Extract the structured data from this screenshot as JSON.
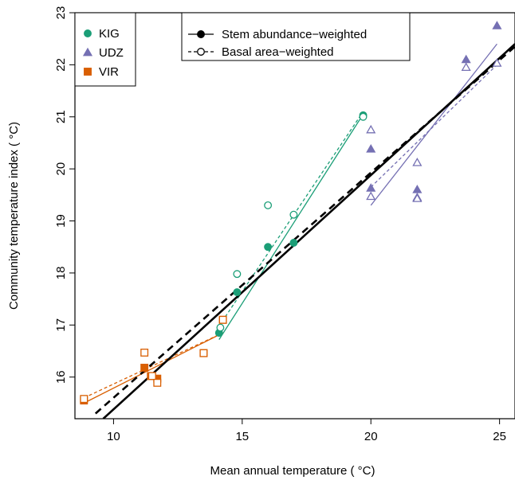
{
  "chart_data": {
    "type": "scatter",
    "xlabel": "Mean annual temperature ( °C)",
    "ylabel": "Community temperature index ( °C)",
    "xlim": [
      8.5,
      25.6
    ],
    "ylim": [
      15.2,
      23.0
    ],
    "xticks": [
      10,
      15,
      20,
      25
    ],
    "yticks": [
      16,
      17,
      18,
      19,
      20,
      21,
      22,
      23
    ],
    "xtick_labels": [
      "10",
      "15",
      "20",
      "25"
    ],
    "ytick_labels": [
      "16",
      "17",
      "18",
      "19",
      "20",
      "21",
      "22",
      "23"
    ],
    "colors": {
      "KIG": "#1b9e77",
      "UDZ": "#7570b3",
      "VIR": "#d95f02",
      "overall": "#000000"
    },
    "legend_sites": [
      {
        "name": "KIG",
        "marker": "circle"
      },
      {
        "name": "UDZ",
        "marker": "triangle"
      },
      {
        "name": "VIR",
        "marker": "square"
      }
    ],
    "legend_methods": [
      {
        "label": "Stem abundance−weighted",
        "line": "solid",
        "marker": "filled"
      },
      {
        "label": "Basal area−weighted",
        "line": "dashed",
        "marker": "open"
      }
    ],
    "series": [
      {
        "name": "KIG",
        "method": "stem",
        "marker": "circle",
        "filled": true,
        "points": [
          [
            14.1,
            16.85
          ],
          [
            14.8,
            17.63
          ],
          [
            16.0,
            18.5
          ],
          [
            17.0,
            18.58
          ],
          [
            19.7,
            21.03
          ]
        ]
      },
      {
        "name": "KIG",
        "method": "basal",
        "marker": "circle",
        "filled": false,
        "points": [
          [
            14.15,
            16.95
          ],
          [
            14.8,
            17.98
          ],
          [
            16.0,
            19.3
          ],
          [
            17.0,
            19.12
          ],
          [
            19.7,
            21.0
          ]
        ]
      },
      {
        "name": "UDZ",
        "method": "stem",
        "marker": "triangle",
        "filled": true,
        "points": [
          [
            20.0,
            20.38
          ],
          [
            20.0,
            19.63
          ],
          [
            21.8,
            19.6
          ],
          [
            21.8,
            19.45
          ],
          [
            23.7,
            22.1
          ],
          [
            24.9,
            22.75
          ]
        ]
      },
      {
        "name": "UDZ",
        "method": "basal",
        "marker": "triangle",
        "filled": false,
        "points": [
          [
            20.0,
            20.75
          ],
          [
            20.0,
            19.47
          ],
          [
            21.8,
            20.12
          ],
          [
            21.8,
            19.43
          ],
          [
            23.7,
            21.95
          ],
          [
            24.9,
            22.03
          ]
        ]
      },
      {
        "name": "VIR",
        "method": "stem",
        "marker": "square",
        "filled": true,
        "points": [
          [
            8.85,
            15.55
          ],
          [
            11.2,
            16.18
          ],
          [
            11.45,
            16.02
          ],
          [
            11.7,
            15.97
          ],
          [
            13.5,
            16.46
          ],
          [
            14.25,
            17.1
          ]
        ]
      },
      {
        "name": "VIR",
        "method": "basal",
        "marker": "square",
        "filled": false,
        "points": [
          [
            8.85,
            15.58
          ],
          [
            11.2,
            16.47
          ],
          [
            11.5,
            16.02
          ],
          [
            11.7,
            15.89
          ],
          [
            13.5,
            16.46
          ],
          [
            14.25,
            17.1
          ]
        ]
      }
    ],
    "fit_lines": [
      {
        "name": "KIG",
        "method": "stem",
        "style": "solid",
        "x": [
          14.1,
          19.7
        ],
        "y": [
          16.72,
          21.05
        ]
      },
      {
        "name": "KIG",
        "method": "basal",
        "style": "dashed",
        "x": [
          14.1,
          19.7
        ],
        "y": [
          16.98,
          21.1
        ]
      },
      {
        "name": "UDZ",
        "method": "stem",
        "style": "solid",
        "x": [
          20.0,
          24.9
        ],
        "y": [
          19.3,
          22.4
        ]
      },
      {
        "name": "UDZ",
        "method": "basal",
        "style": "dashed",
        "x": [
          20.0,
          24.9
        ],
        "y": [
          19.65,
          22.0
        ]
      },
      {
        "name": "VIR",
        "method": "stem",
        "style": "solid",
        "x": [
          8.85,
          14.25
        ],
        "y": [
          15.5,
          16.85
        ]
      },
      {
        "name": "VIR",
        "method": "basal",
        "style": "dashed",
        "x": [
          8.85,
          14.25
        ],
        "y": [
          15.6,
          16.85
        ]
      },
      {
        "name": "overall",
        "method": "stem",
        "style": "solid",
        "x": [
          9.6,
          25.6
        ],
        "y": [
          15.2,
          22.4
        ]
      },
      {
        "name": "overall",
        "method": "basal",
        "style": "dashed",
        "x": [
          9.3,
          25.6
        ],
        "y": [
          15.3,
          22.35
        ]
      }
    ]
  }
}
